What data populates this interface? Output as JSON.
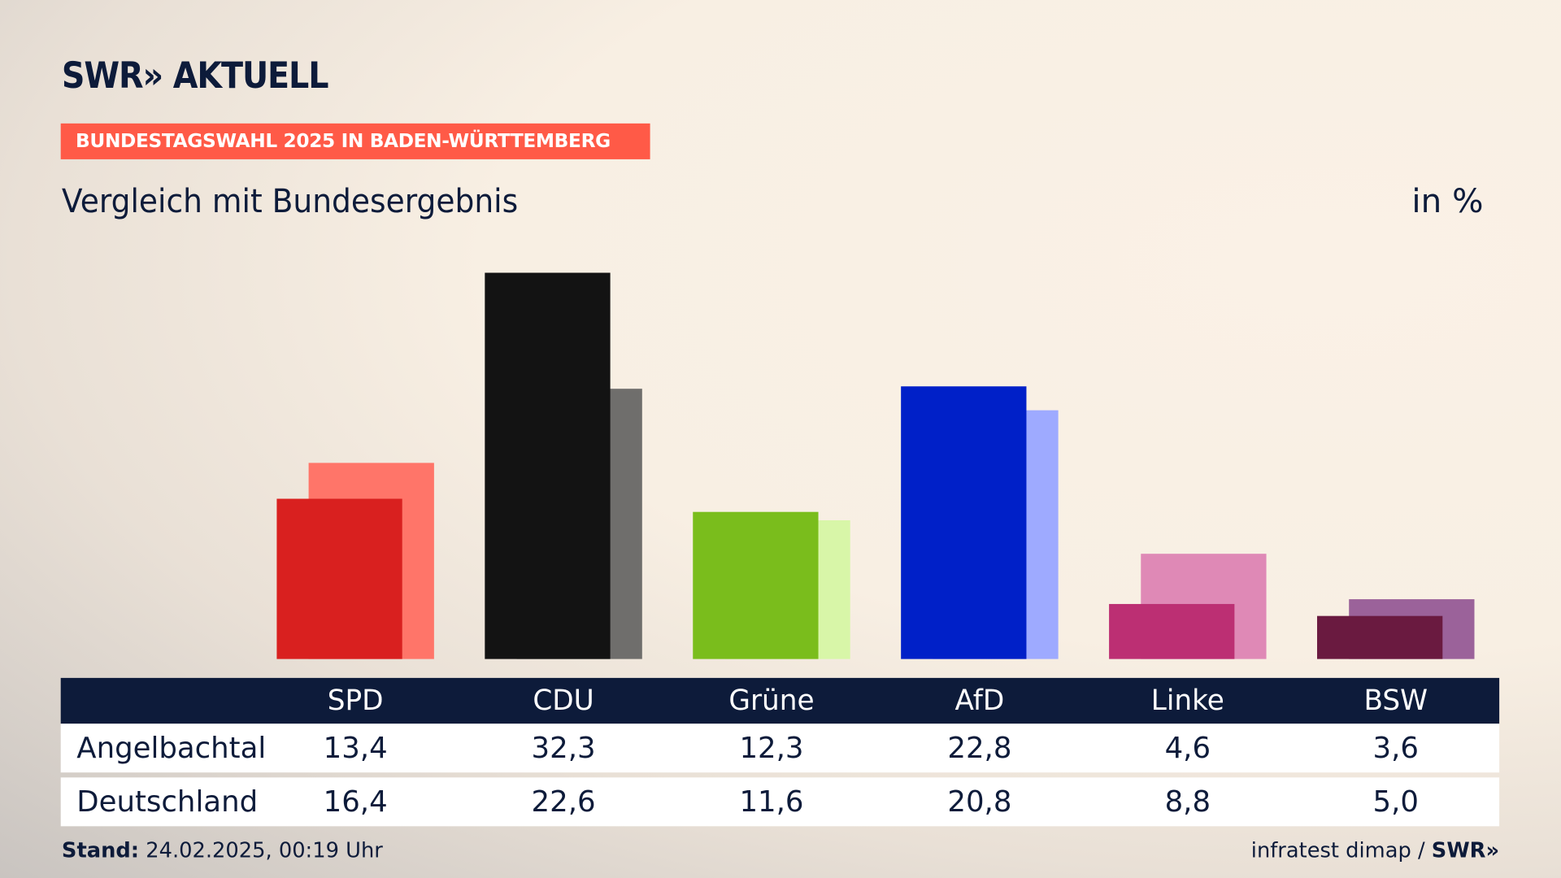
{
  "header": {
    "logo": "SWR» AKTUELL",
    "badge": "BUNDESTAGSWAHL 2025 IN BADEN-WÜRTTEMBERG",
    "subtitle": "Vergleich mit Bundesergebnis",
    "unit": "in %"
  },
  "footer": {
    "stand_label": "Stand:",
    "stand_value": " 24.02.2025, 00:19 Uhr",
    "source": "infratest dimap / ",
    "source_logo": "SWR»"
  },
  "chart_data": {
    "type": "bar",
    "title": "Vergleich mit Bundesergebnis",
    "ylabel": "in %",
    "ylim": [
      0,
      32.3
    ],
    "categories": [
      "SPD",
      "CDU",
      "Grüne",
      "AfD",
      "Linke",
      "BSW"
    ],
    "series": [
      {
        "name": "Angelbachtal",
        "values": [
          "13,4",
          "32,3",
          "12,3",
          "22,8",
          "4,6",
          "3,6"
        ],
        "colors": [
          "#d9201f",
          "#131313",
          "#7abd1c",
          "#0020c8",
          "#bc2f73",
          "#6a1a40"
        ]
      },
      {
        "name": "Deutschland",
        "values": [
          "16,4",
          "22,6",
          "11,6",
          "20,8",
          "8,8",
          "5,0"
        ],
        "colors": [
          "#ff7569",
          "#6f6e6c",
          "#d8f6a8",
          "#9eaaff",
          "#df89b6",
          "#9b629a"
        ]
      }
    ]
  }
}
